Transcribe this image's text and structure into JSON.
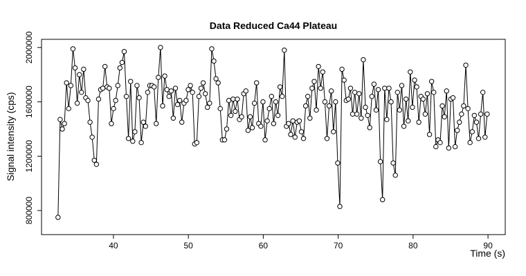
{
  "chart_data": {
    "type": "line",
    "title": "Data Reduced Ca44 Plateau",
    "x_label": "Time (s)",
    "y_label": "Signal intensity (cps)",
    "color": "#000000",
    "x": [
      32.6,
      32.885,
      33.17,
      33.455,
      33.74,
      34.025,
      34.31,
      34.595,
      34.88,
      35.165,
      35.45,
      35.735,
      36.02,
      36.305,
      36.59,
      36.875,
      37.16,
      37.445,
      37.73,
      38.015,
      38.3,
      38.585,
      38.87,
      39.155,
      39.44,
      39.725,
      40.01,
      40.295,
      40.58,
      40.865,
      41.15,
      41.435,
      41.72,
      42.005,
      42.29,
      42.575,
      42.86,
      43.145,
      43.43,
      43.715,
      44,
      44.285,
      44.57,
      44.855,
      45.14,
      45.425,
      45.71,
      45.995,
      46.28,
      46.565,
      46.85,
      47.135,
      47.42,
      47.705,
      47.99,
      48.275,
      48.56,
      48.845,
      49.13,
      49.415,
      49.7,
      49.985,
      50.27,
      50.555,
      50.84,
      51.125,
      51.41,
      51.695,
      51.98,
      52.265,
      52.55,
      52.835,
      53.12,
      53.405,
      53.69,
      53.975,
      54.26,
      54.545,
      54.83,
      55.115,
      55.4,
      55.685,
      55.97,
      56.255,
      56.54,
      56.825,
      57.11,
      57.395,
      57.68,
      57.965,
      58.25,
      58.535,
      58.82,
      59.105,
      59.39,
      59.675,
      59.96,
      60.245,
      60.53,
      60.815,
      61.1,
      61.385,
      61.67,
      61.955,
      62.24,
      62.525,
      62.81,
      63.095,
      63.38,
      63.665,
      63.95,
      64.235,
      64.52,
      64.805,
      65.09,
      65.375,
      65.66,
      65.945,
      66.23,
      66.515,
      66.8,
      67.085,
      67.37,
      67.655,
      67.94,
      68.225,
      68.51,
      68.795,
      69.08,
      69.365,
      69.65,
      69.935,
      70.22,
      70.505,
      70.79,
      71.075,
      71.36,
      71.645,
      71.93,
      72.215,
      72.5,
      72.785,
      73.07,
      73.355,
      73.64,
      73.925,
      74.21,
      74.495,
      74.78,
      75.065,
      75.35,
      75.635,
      75.92,
      76.205,
      76.49,
      76.775,
      77.06,
      77.345,
      77.63,
      77.915,
      78.2,
      78.485,
      78.77,
      79.055,
      79.34,
      79.625,
      79.91,
      80.195,
      80.48,
      80.765,
      81.05,
      81.335,
      81.62,
      81.905,
      82.19,
      82.475,
      82.76,
      83.045,
      83.33,
      83.615,
      83.9,
      84.185,
      84.47,
      84.755,
      85.04,
      85.325,
      85.61,
      85.895,
      86.18,
      86.465,
      86.75,
      87.035,
      87.32,
      87.605,
      87.89,
      88.175,
      88.46,
      88.745,
      89.03,
      89.315,
      89.6,
      89.885
    ],
    "values": [
      750000,
      1470000,
      1400000,
      1440000,
      1740000,
      1550000,
      1720000,
      1990000,
      1850000,
      1590000,
      1800000,
      1670000,
      1840000,
      1630000,
      1610000,
      1450000,
      1340000,
      1170000,
      1140000,
      1620000,
      1690000,
      1700000,
      1860000,
      1710000,
      1700000,
      1440000,
      1550000,
      1610000,
      1720000,
      1850000,
      1890000,
      1970000,
      1640000,
      1330000,
      1750000,
      1310000,
      1380000,
      1720000,
      1630000,
      1300000,
      1450000,
      1420000,
      1670000,
      1720000,
      1720000,
      1710000,
      1440000,
      1780000,
      2000000,
      1570000,
      1790000,
      1690000,
      1640000,
      1680000,
      1480000,
      1700000,
      1580000,
      1610000,
      1450000,
      1590000,
      1610000,
      1690000,
      1720000,
      1670000,
      1290000,
      1300000,
      1640000,
      1700000,
      1740000,
      1660000,
      1560000,
      1590000,
      1990000,
      1900000,
      1770000,
      1740000,
      1550000,
      1320000,
      1320000,
      1400000,
      1610000,
      1500000,
      1620000,
      1530000,
      1620000,
      1470000,
      1490000,
      1660000,
      1680000,
      1390000,
      1490000,
      1410000,
      1590000,
      1740000,
      1440000,
      1420000,
      1600000,
      1320000,
      1460000,
      1550000,
      1640000,
      1440000,
      1600000,
      1500000,
      1710000,
      1640000,
      1980000,
      1420000,
      1440000,
      1360000,
      1460000,
      1340000,
      1450000,
      1460000,
      1380000,
      1330000,
      1570000,
      1640000,
      1480000,
      1700000,
      1750000,
      1540000,
      1860000,
      1700000,
      1820000,
      1600000,
      1330000,
      1570000,
      1680000,
      1380000,
      1600000,
      1150000,
      830000,
      1840000,
      1760000,
      1610000,
      1620000,
      1700000,
      1510000,
      1670000,
      1510000,
      1660000,
      1480000,
      1910000,
      1560000,
      1500000,
      1410000,
      1640000,
      1730000,
      1540000,
      1690000,
      1160000,
      880000,
      1700000,
      1470000,
      1700000,
      1600000,
      1150000,
      1060000,
      1670000,
      1540000,
      1720000,
      1420000,
      1620000,
      1460000,
      1820000,
      1560000,
      1760000,
      1710000,
      1450000,
      1640000,
      1620000,
      1510000,
      1660000,
      1360000,
      1750000,
      1670000,
      1270000,
      1320000,
      1300000,
      1570000,
      1490000,
      1680000,
      1260000,
      1620000,
      1630000,
      1270000,
      1390000,
      1450000,
      1510000,
      1570000,
      1870000,
      1550000,
      1300000,
      1380000,
      1500000,
      1450000,
      1330000,
      1510000,
      1670000,
      1340000,
      1510000
    ],
    "xlim": [
      30.4,
      92.3
    ],
    "ylim": [
      623000,
      2060000
    ],
    "xticks": [
      40,
      50,
      60,
      70,
      80,
      90
    ],
    "yticks": [
      800000,
      1200000,
      1600000,
      2000000
    ]
  }
}
